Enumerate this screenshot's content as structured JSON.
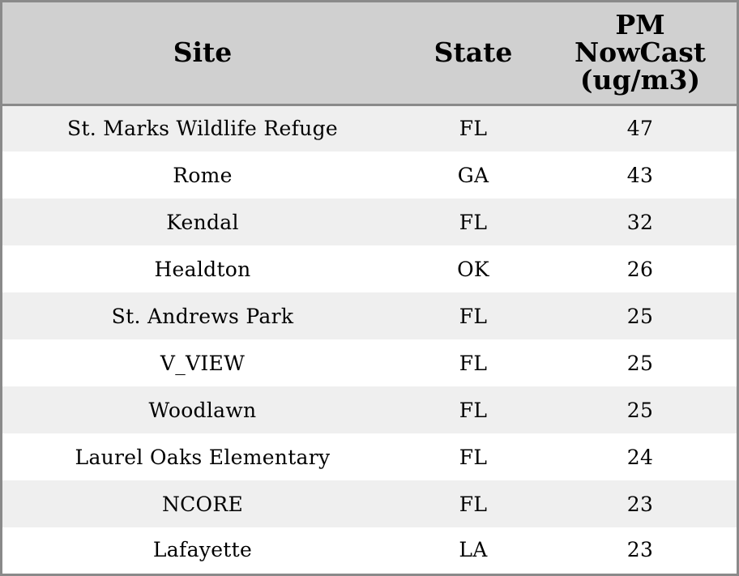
{
  "chart_data": {
    "type": "table",
    "columns": [
      "Site",
      "State",
      "PM NowCast (ug/m3)"
    ],
    "header_lines": [
      [
        "Site"
      ],
      [
        "State"
      ],
      [
        "PM",
        "NowCast",
        "(ug/m3)"
      ]
    ],
    "rows": [
      [
        "St. Marks Wildlife Refuge",
        "FL",
        "47"
      ],
      [
        "Rome",
        "GA",
        "43"
      ],
      [
        "Kendal",
        "FL",
        "32"
      ],
      [
        "Healdton",
        "OK",
        "26"
      ],
      [
        "St. Andrews Park",
        "FL",
        "25"
      ],
      [
        "V_VIEW",
        "FL",
        "25"
      ],
      [
        "Woodlawn",
        "FL",
        "25"
      ],
      [
        "Laurel Oaks Elementary",
        "FL",
        "24"
      ],
      [
        "NCORE",
        "FL",
        "23"
      ],
      [
        "Lafayette",
        "LA",
        "23"
      ]
    ],
    "colors": {
      "header_bg": "#d0d0d0",
      "row_stripe": "#efefef",
      "row_plain": "#ffffff",
      "border": "#8a8a8a"
    }
  }
}
